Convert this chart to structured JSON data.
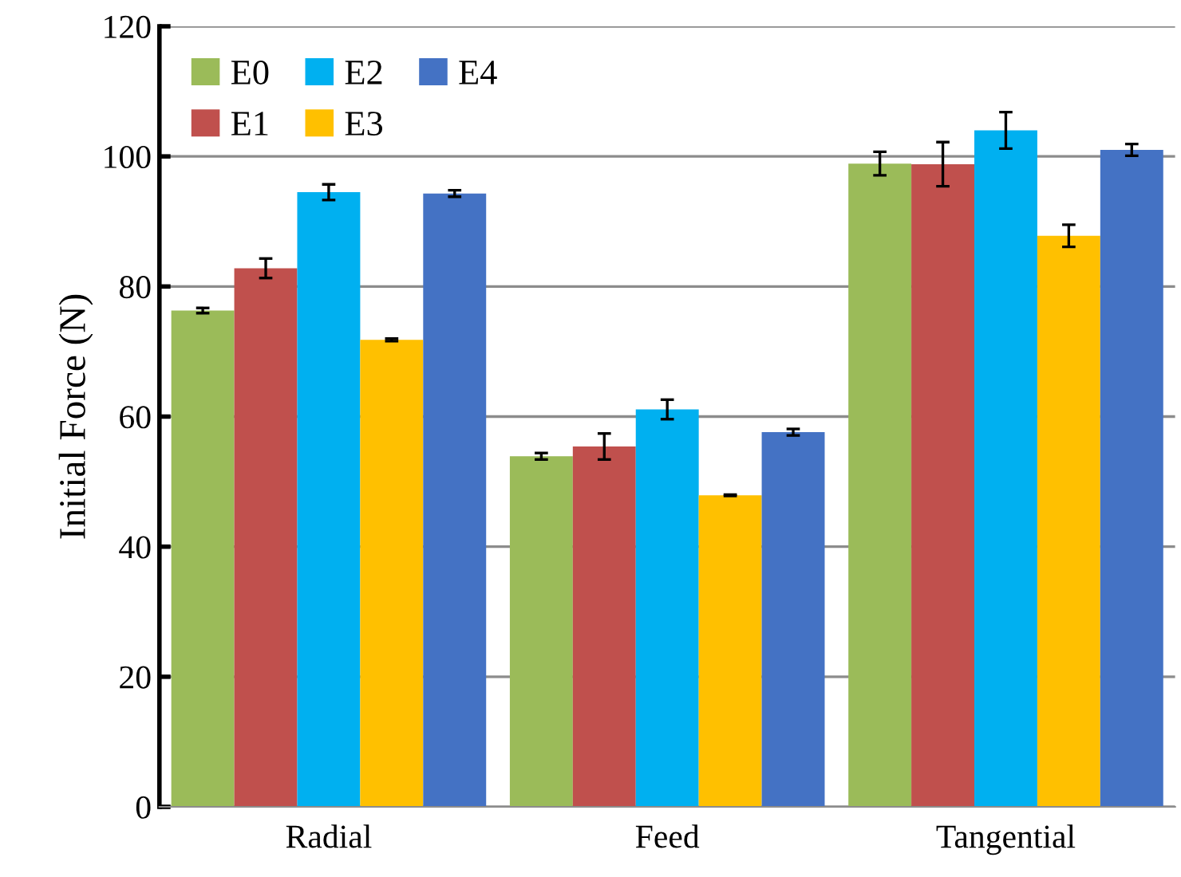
{
  "chart_data": {
    "type": "bar",
    "ylabel": "Initial Force (N)",
    "categories": [
      "Radial",
      "Feed",
      "Tangential"
    ],
    "series": [
      {
        "name": "E0",
        "color": "#9bbb59",
        "values": [
          76.3,
          53.9,
          98.9
        ],
        "errors": [
          0.4,
          0.5,
          1.8
        ]
      },
      {
        "name": "E1",
        "color": "#c0504d",
        "values": [
          82.8,
          55.4,
          98.8
        ],
        "errors": [
          1.5,
          2.0,
          3.4
        ]
      },
      {
        "name": "E2",
        "color": "#00b0f0",
        "values": [
          94.5,
          61.1,
          104.0
        ],
        "errors": [
          1.2,
          1.5,
          2.8
        ]
      },
      {
        "name": "E3",
        "color": "#ffc000",
        "values": [
          71.8,
          47.9,
          87.8
        ],
        "errors": [
          0.2,
          0.1,
          1.7
        ]
      },
      {
        "name": "E4",
        "color": "#4472c4",
        "values": [
          94.3,
          57.6,
          101.0
        ],
        "errors": [
          0.5,
          0.5,
          0.9
        ]
      }
    ],
    "ylim": [
      0,
      120
    ],
    "yticks": [
      0,
      20,
      40,
      60,
      80,
      100,
      120
    ],
    "grid": "y",
    "legend": "top left"
  }
}
